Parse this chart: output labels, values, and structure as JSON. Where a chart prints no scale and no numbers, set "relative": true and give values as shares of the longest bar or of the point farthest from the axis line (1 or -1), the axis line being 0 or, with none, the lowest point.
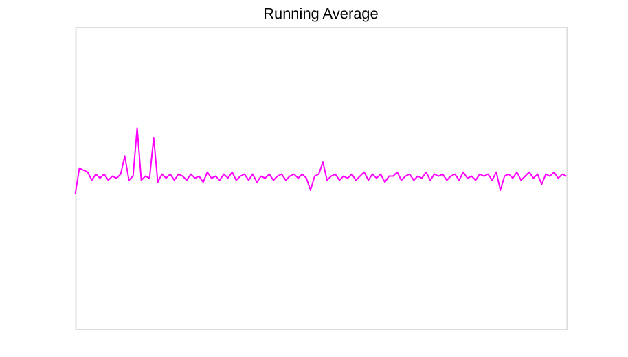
{
  "chart_data": {
    "type": "line",
    "title": "Running Average",
    "relative": true,
    "categories": [
      null,
      null,
      null,
      null,
      null,
      null,
      null,
      null,
      null,
      null,
      null,
      null,
      null,
      null,
      null,
      null,
      null,
      null,
      null,
      null,
      null,
      null,
      null,
      null,
      null,
      null,
      null,
      null,
      null,
      null,
      null,
      null,
      null,
      null,
      null,
      null,
      null,
      null,
      null,
      null,
      null,
      null,
      null,
      null,
      null,
      null,
      null,
      null,
      null,
      null,
      null,
      null,
      null,
      null,
      null,
      null,
      null,
      null,
      null,
      null,
      null,
      null,
      null,
      null,
      null,
      null,
      null,
      null,
      null,
      null,
      null,
      null,
      null,
      null,
      null,
      null,
      null,
      null,
      null,
      null,
      null,
      null,
      null,
      null,
      null,
      null,
      null,
      null,
      null,
      null,
      null,
      null,
      null,
      null,
      null,
      null,
      null,
      null,
      null,
      null,
      null,
      null,
      null,
      null,
      null,
      null,
      null,
      null,
      null,
      null,
      null,
      null,
      null,
      null,
      null,
      null,
      null,
      null,
      null,
      null
    ],
    "series": [
      {
        "color": "#ff00ff",
        "values": [
          0.67,
          0.8,
          0.79,
          0.78,
          0.74,
          0.77,
          0.75,
          0.77,
          0.74,
          0.76,
          0.75,
          0.77,
          0.86,
          0.74,
          0.76,
          1.0,
          0.74,
          0.76,
          0.75,
          0.95,
          0.73,
          0.77,
          0.75,
          0.77,
          0.74,
          0.77,
          0.76,
          0.74,
          0.77,
          0.75,
          0.76,
          0.73,
          0.78,
          0.75,
          0.76,
          0.74,
          0.77,
          0.75,
          0.78,
          0.74,
          0.76,
          0.77,
          0.74,
          0.77,
          0.73,
          0.76,
          0.75,
          0.77,
          0.74,
          0.76,
          0.77,
          0.74,
          0.76,
          0.77,
          0.75,
          0.77,
          0.75,
          0.69,
          0.76,
          0.77,
          0.83,
          0.74,
          0.76,
          0.77,
          0.74,
          0.76,
          0.75,
          0.77,
          0.74,
          0.76,
          0.78,
          0.74,
          0.77,
          0.75,
          0.77,
          0.73,
          0.76,
          0.76,
          0.78,
          0.74,
          0.76,
          0.77,
          0.74,
          0.76,
          0.75,
          0.78,
          0.74,
          0.77,
          0.76,
          0.77,
          0.74,
          0.76,
          0.77,
          0.74,
          0.78,
          0.75,
          0.76,
          0.74,
          0.77,
          0.76,
          0.77,
          0.74,
          0.78,
          0.69,
          0.76,
          0.77,
          0.75,
          0.78,
          0.74,
          0.76,
          0.78,
          0.75,
          0.77,
          0.72,
          0.77,
          0.76,
          0.78,
          0.75,
          0.77,
          0.76
        ]
      }
    ]
  }
}
